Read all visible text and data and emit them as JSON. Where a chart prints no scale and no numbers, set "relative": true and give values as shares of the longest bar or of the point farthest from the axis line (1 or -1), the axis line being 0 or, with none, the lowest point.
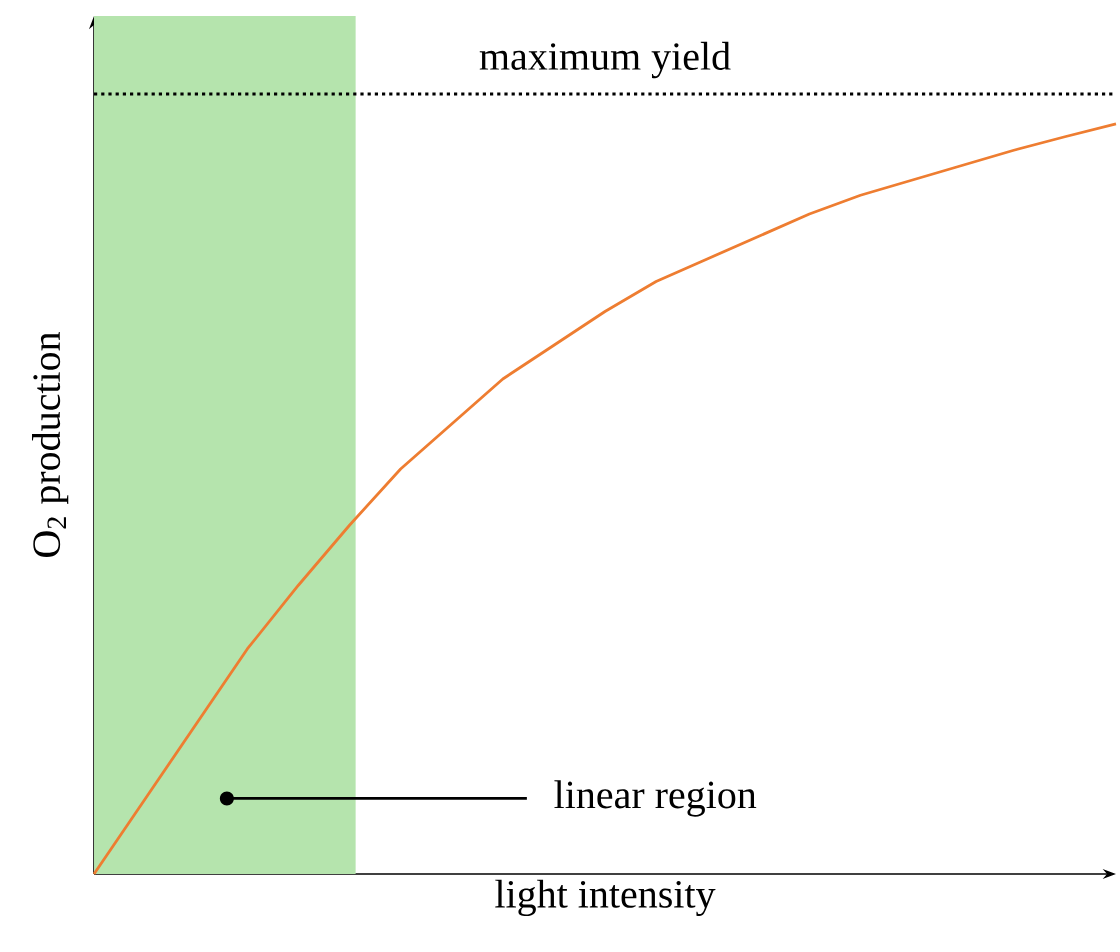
{
  "chart_data": {
    "type": "line",
    "relative": true,
    "xlabel": "light intensity",
    "ylabel": "O$_{2}$ production",
    "tick_labels": false,
    "categories": [
      null,
      null,
      null,
      null,
      null,
      null,
      null,
      null,
      null,
      null,
      null,
      null,
      null,
      null,
      null,
      null,
      null,
      null,
      null,
      null,
      null
    ],
    "series": [
      {
        "color": "#ee7d31",
        "values": [
          0,
          0.1,
          0.2,
          0.3,
          0.385,
          0.465,
          0.54,
          0.6,
          0.66,
          0.705,
          0.75,
          0.79,
          0.82,
          0.85,
          0.88,
          0.905,
          0.925,
          0.945,
          0.965,
          0.983,
          1.0
        ]
      }
    ],
    "ref_lines": [
      {
        "axis": "y",
        "value": 1.04,
        "label": "maximum yield",
        "color": "#000000",
        "line_style": "dotted"
      }
    ],
    "annotations": [
      "linear region"
    ]
  }
}
